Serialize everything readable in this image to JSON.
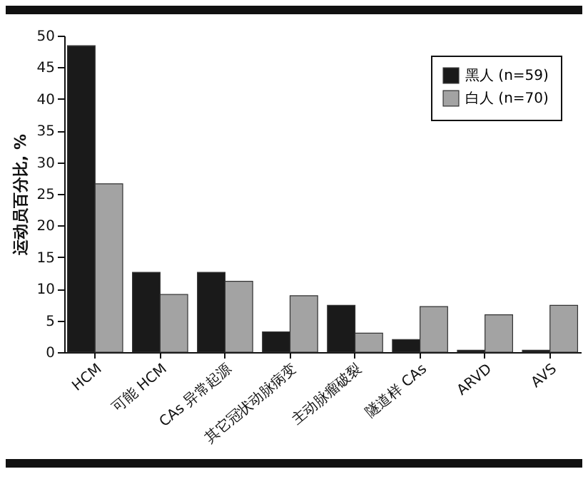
{
  "chart_data": {
    "type": "bar",
    "ylabel": "运动员百分比, %",
    "categories": [
      "HCM",
      "可能 HCM",
      "CAs 异常起源",
      "其它冠状动脉病变",
      "主动脉瘤破裂",
      "隧道样 CAs",
      "ARVD",
      "AVS"
    ],
    "series": [
      {
        "name": "黑人 (n=59)",
        "color": "#1a1a1a",
        "values": [
          48.4,
          12.6,
          12.6,
          3.2,
          7.4,
          2.0,
          0.3,
          0.3
        ]
      },
      {
        "name": "白人 (n=70)",
        "color": "#a3a3a3",
        "values": [
          26.6,
          9.1,
          11.2,
          8.9,
          3.0,
          7.2,
          5.9,
          7.4
        ]
      }
    ],
    "ylim": [
      0,
      50
    ],
    "yticks": [
      0,
      5,
      10,
      15,
      20,
      25,
      30,
      35,
      40,
      45,
      50
    ],
    "grid": false,
    "legend": "top right"
  }
}
